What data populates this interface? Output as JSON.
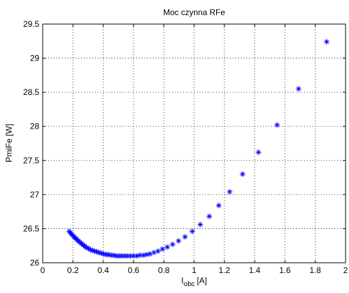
{
  "chart_data": {
    "type": "scatter",
    "title": "Moc czynna RFe",
    "xlabel": {
      "base": "I",
      "subscript": "obc",
      "unit": "[A]"
    },
    "ylabel": "PmiFe [W]",
    "xlim": [
      0,
      2
    ],
    "ylim": [
      26,
      29.5
    ],
    "xticks": [
      "0",
      "0.2",
      "0.4",
      "0.6",
      "0.8",
      "1",
      "1.2",
      "1.4",
      "1.6",
      "1.8",
      "2"
    ],
    "yticks": [
      "26",
      "26.5",
      "27",
      "27.5",
      "28",
      "28.5",
      "29",
      "29.5"
    ],
    "grid": true,
    "marker": "*",
    "marker_color": "#0000ff",
    "x": [
      0.175,
      0.183,
      0.191,
      0.199,
      0.208,
      0.217,
      0.226,
      0.236,
      0.246,
      0.257,
      0.268,
      0.279,
      0.291,
      0.303,
      0.316,
      0.329,
      0.343,
      0.357,
      0.372,
      0.387,
      0.402,
      0.418,
      0.434,
      0.451,
      0.468,
      0.486,
      0.504,
      0.522,
      0.541,
      0.56,
      0.58,
      0.6,
      0.621,
      0.642,
      0.664,
      0.686,
      0.709,
      0.735,
      0.762,
      0.791,
      0.823,
      0.858,
      0.897,
      0.94,
      0.988,
      1.041,
      1.1,
      1.163,
      1.235,
      1.32,
      1.425,
      1.548,
      1.69,
      1.875
    ],
    "y": [
      26.46,
      26.44,
      26.42,
      26.4,
      26.38,
      26.36,
      26.34,
      26.32,
      26.3,
      26.28,
      26.26,
      26.24,
      26.22,
      26.21,
      26.19,
      26.18,
      26.17,
      26.16,
      26.15,
      26.14,
      26.13,
      26.12,
      26.12,
      26.11,
      26.11,
      26.1,
      26.1,
      26.1,
      26.1,
      26.1,
      26.1,
      26.1,
      26.1,
      26.11,
      26.11,
      26.12,
      26.13,
      26.15,
      26.17,
      26.2,
      26.23,
      26.27,
      26.32,
      26.38,
      26.46,
      26.56,
      26.68,
      26.84,
      27.04,
      27.3,
      27.62,
      28.02,
      28.55,
      29.24
    ]
  }
}
